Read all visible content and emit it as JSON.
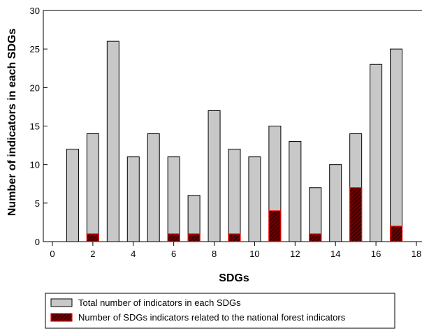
{
  "chart_data": {
    "type": "bar",
    "title": "",
    "xlabel": "SDGs",
    "ylabel": "Number of indicators in each SDGs",
    "xlim": [
      0,
      18
    ],
    "ylim": [
      0,
      30
    ],
    "x_ticks": [
      0,
      2,
      4,
      6,
      8,
      10,
      12,
      14,
      16,
      18
    ],
    "y_ticks": [
      0,
      5,
      10,
      15,
      20,
      25,
      30
    ],
    "grid": false,
    "legend_position": "bottom",
    "categories": [
      1,
      2,
      3,
      4,
      5,
      6,
      7,
      8,
      9,
      10,
      11,
      12,
      13,
      14,
      15,
      16,
      17
    ],
    "series": [
      {
        "name": "Total number of indicators in each SDGs",
        "color": "#c8c8c8",
        "values": [
          12,
          14,
          26,
          11,
          14,
          11,
          6,
          17,
          12,
          11,
          15,
          13,
          7,
          10,
          14,
          23,
          25
        ]
      },
      {
        "name": "Number of SDGs indicators related to the national forest indicators",
        "color": "#8b0000",
        "edge_color": "#ff0000",
        "pattern": "hatched",
        "values": [
          0,
          1,
          0,
          0,
          0,
          1,
          1,
          0,
          1,
          0,
          4,
          0,
          1,
          0,
          7,
          0,
          2
        ]
      }
    ]
  }
}
